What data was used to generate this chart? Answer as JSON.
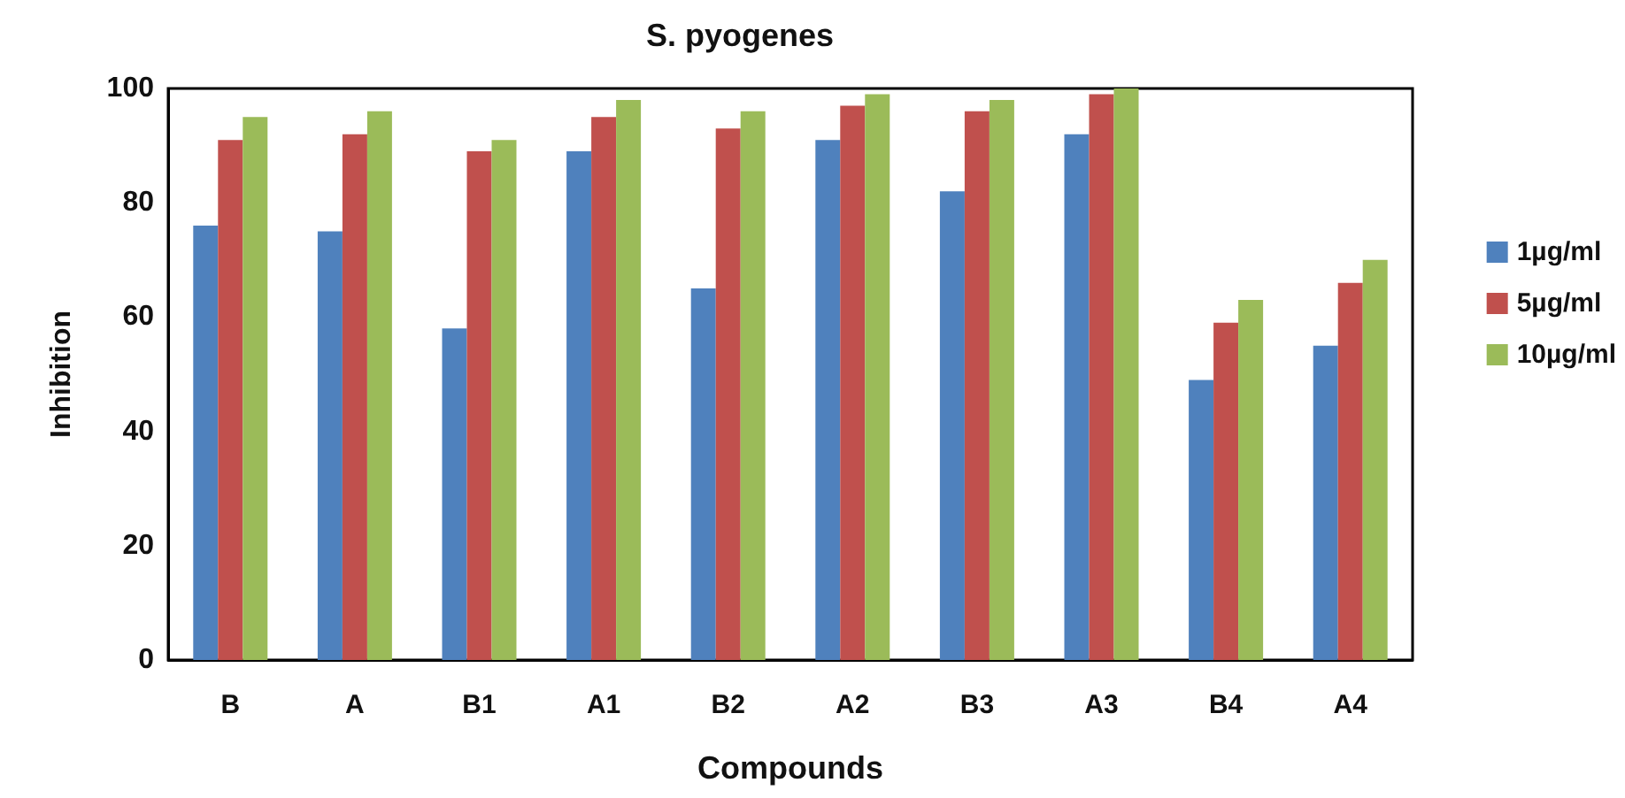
{
  "chart_data": {
    "type": "bar",
    "title": "S. pyogenes",
    "xlabel": "Compounds",
    "ylabel": "Inhibition",
    "categories": [
      "B",
      "A",
      "B1",
      "A1",
      "B2",
      "A2",
      "B3",
      "A3",
      "B4",
      "A4"
    ],
    "series": [
      {
        "name": "1µg/ml",
        "color": "#4f81bd",
        "values": [
          76,
          75,
          58,
          89,
          65,
          91,
          82,
          92,
          49,
          55
        ]
      },
      {
        "name": "5µg/ml",
        "color": "#c0504d",
        "values": [
          91,
          92,
          89,
          95,
          93,
          97,
          96,
          99,
          59,
          66
        ]
      },
      {
        "name": "10µg/ml",
        "color": "#9bbb59",
        "values": [
          95,
          96,
          91,
          98,
          96,
          99,
          98,
          100,
          63,
          70
        ]
      }
    ],
    "ylim": [
      0,
      100
    ],
    "yticks": [
      0,
      20,
      40,
      60,
      80,
      100
    ],
    "grid": false,
    "legend": "right"
  }
}
